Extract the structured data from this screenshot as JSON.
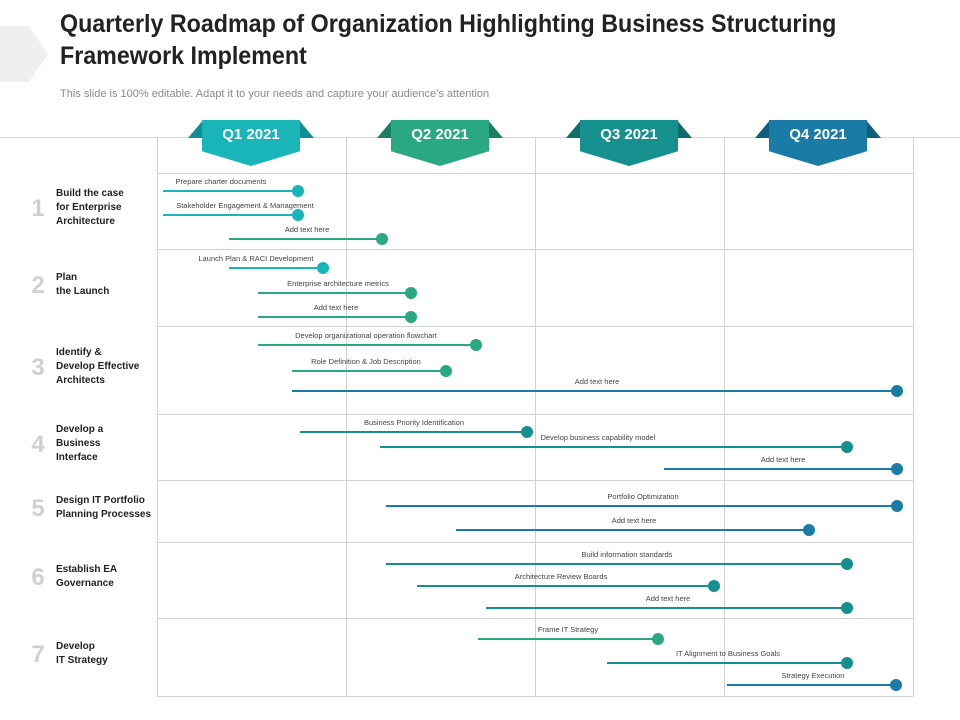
{
  "page": {
    "title": "Quarterly Roadmap of Organization Highlighting Business Structuring Framework Implement",
    "subtitle": "This slide is 100% editable. Adapt it to your needs and capture your audience’s attention"
  },
  "quarters": [
    {
      "label": "Q1 2021",
      "color": "#19b5b8",
      "wing": "#0f8f93"
    },
    {
      "label": "Q2 2021",
      "color": "#2aa882",
      "wing": "#1d7f62"
    },
    {
      "label": "Q3 2021",
      "color": "#168f8f",
      "wing": "#0f6d6d"
    },
    {
      "label": "Q4 2021",
      "color": "#1a7ca6",
      "wing": "#125c7d"
    }
  ],
  "rows": [
    {
      "number": "1",
      "label": "Build the case\nfor Enterprise\nArchitecture"
    },
    {
      "number": "2",
      "label": "Plan\nthe Launch"
    },
    {
      "number": "3",
      "label": "Identify &\nDevelop Effective\nArchitects"
    },
    {
      "number": "4",
      "label": "Develop a\nBusiness\nInterface"
    },
    {
      "number": "5",
      "label": "Design IT Portfolio\nPlanning Processes"
    },
    {
      "number": "6",
      "label": "Establish EA\nGovernance"
    },
    {
      "number": "7",
      "label": "Develop\nIT Strategy"
    }
  ],
  "tasks": [
    {
      "label": "Prepare  charter  documents",
      "color": "#19b5b8"
    },
    {
      "label": "Stakeholder  Engagement   & Management",
      "color": "#19b5b8"
    },
    {
      "label": "Add text here",
      "color": "#2aa882"
    },
    {
      "label": "Launch  Plan & RACI Development",
      "color": "#19b5b8"
    },
    {
      "label": "Enterprise  architecture  metrics",
      "color": "#2aa882"
    },
    {
      "label": "Add text here",
      "color": "#2aa882"
    },
    {
      "label": "Develop  organizational   operation  flowchart",
      "color": "#2aa882"
    },
    {
      "label": "Role Definition  & Job Description",
      "color": "#2aa882"
    },
    {
      "label": "Add text here",
      "color": "#1a7ca6"
    },
    {
      "label": "Business  Priority Identification",
      "color": "#168f8f"
    },
    {
      "label": "Develop  business  capability  model",
      "color": "#168f8f"
    },
    {
      "label": "Add text here",
      "color": "#1a7ca6"
    },
    {
      "label": "Portfolio  Optimization",
      "color": "#1a7ca6"
    },
    {
      "label": "Add text here",
      "color": "#1a7ca6"
    },
    {
      "label": "Build information  standards",
      "color": "#168f8f"
    },
    {
      "label": "Architecture  Review  Boards",
      "color": "#168f8f"
    },
    {
      "label": "Add text here",
      "color": "#168f8f"
    },
    {
      "label": "Frame IT Strategy",
      "color": "#2aa882"
    },
    {
      "label": "IT Alignment  to Business  Goals",
      "color": "#168f8f"
    },
    {
      "label": "Strategy  Execution",
      "color": "#1a7ca6"
    }
  ]
}
